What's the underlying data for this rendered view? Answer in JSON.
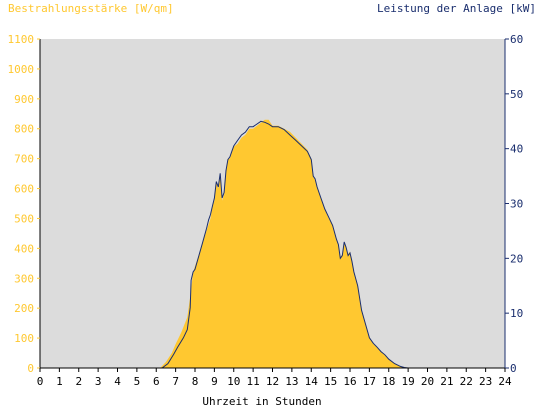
{
  "chart_data": {
    "type": "area",
    "left_axis_title": "Bestrahlungsstärke [W/qm]",
    "right_axis_title": "Leistung der Anlage [kW]",
    "xlabel": "Uhrzeit in Stunden",
    "xlim": [
      0,
      24
    ],
    "x_ticks": [
      "0",
      "1",
      "2",
      "3",
      "4",
      "5",
      "6",
      "7",
      "8",
      "9",
      "10",
      "11",
      "12",
      "13",
      "14",
      "15",
      "16",
      "17",
      "18",
      "19",
      "20",
      "21",
      "22",
      "23",
      "24"
    ],
    "ylim_left": [
      0,
      1100
    ],
    "y_ticks_left": [
      "0",
      "100",
      "200",
      "300",
      "400",
      "500",
      "600",
      "700",
      "800",
      "900",
      "1000",
      "1100"
    ],
    "ylim_right": [
      0,
      60
    ],
    "y_ticks_right": [
      "0",
      "10",
      "20",
      "30",
      "40",
      "50",
      "60"
    ],
    "grid": false,
    "colors": {
      "plot_background": "#dcdcdc",
      "irradiance_fill": "#ffc830",
      "power_line": "#1a2e6e",
      "left_axis_text": "#ffc830",
      "right_axis_text": "#1a2e6e"
    },
    "series": [
      {
        "axis": "left",
        "style": "area",
        "x": [
          0,
          6.2,
          6.5,
          6.8,
          7.0,
          7.3,
          7.6,
          7.8,
          7.9,
          8.0,
          8.2,
          8.5,
          8.7,
          8.8,
          8.9,
          9.0,
          9.1,
          9.2,
          9.3,
          9.4,
          9.5,
          9.6,
          9.7,
          9.8,
          9.9,
          10.0,
          10.2,
          10.4,
          10.6,
          10.8,
          11.0,
          11.2,
          11.4,
          11.6,
          11.8,
          12.0,
          12.3,
          12.6,
          12.9,
          13.2,
          13.5,
          13.8,
          14.0,
          14.1,
          14.2,
          14.3,
          14.5,
          14.7,
          14.9,
          15.1,
          15.3,
          15.4,
          15.5,
          15.6,
          15.7,
          15.8,
          15.9,
          16.0,
          16.1,
          16.2,
          16.4,
          16.6,
          16.8,
          17.0,
          17.2,
          17.4,
          17.6,
          17.8,
          18.0,
          18.3,
          18.6,
          18.8,
          19.0,
          24
        ],
        "y": [
          0,
          0,
          20,
          50,
          80,
          120,
          170,
          260,
          320,
          340,
          380,
          440,
          480,
          500,
          540,
          560,
          620,
          600,
          640,
          560,
          580,
          650,
          700,
          700,
          720,
          740,
          750,
          770,
          780,
          800,
          800,
          810,
          820,
          830,
          830,
          810,
          810,
          800,
          790,
          770,
          750,
          730,
          700,
          640,
          630,
          600,
          570,
          530,
          500,
          480,
          430,
          410,
          370,
          380,
          420,
          400,
          380,
          390,
          360,
          320,
          280,
          190,
          150,
          100,
          80,
          70,
          55,
          45,
          30,
          15,
          5,
          2,
          0,
          0
        ]
      },
      {
        "axis": "right",
        "style": "line",
        "x": [
          0,
          6.3,
          6.6,
          6.9,
          7.1,
          7.4,
          7.6,
          7.75,
          7.8,
          7.9,
          8.0,
          8.2,
          8.4,
          8.6,
          8.7,
          8.8,
          8.9,
          9.0,
          9.1,
          9.2,
          9.3,
          9.4,
          9.5,
          9.6,
          9.7,
          9.8,
          9.9,
          10.0,
          10.2,
          10.4,
          10.6,
          10.8,
          11.0,
          11.2,
          11.4,
          11.6,
          11.8,
          12.0,
          12.3,
          12.6,
          12.9,
          13.2,
          13.5,
          13.8,
          14.0,
          14.1,
          14.2,
          14.3,
          14.5,
          14.7,
          14.9,
          15.1,
          15.3,
          15.4,
          15.5,
          15.6,
          15.7,
          15.8,
          15.9,
          16.0,
          16.1,
          16.2,
          16.4,
          16.6,
          16.8,
          17.0,
          17.2,
          17.4,
          17.6,
          17.8,
          18.0,
          18.3,
          18.6,
          18.8,
          19.0,
          24
        ],
        "y": [
          0,
          0,
          0.8,
          2.5,
          3.8,
          5.5,
          7.0,
          11.0,
          16.0,
          17.5,
          18.0,
          20.5,
          23.0,
          25.5,
          27.0,
          28.0,
          29.5,
          31.0,
          34.0,
          33.0,
          35.5,
          31.0,
          32.0,
          36.0,
          38.0,
          38.5,
          39.5,
          40.5,
          41.5,
          42.5,
          43.0,
          44.0,
          44.0,
          44.5,
          45.0,
          44.8,
          44.5,
          44.0,
          44.0,
          43.5,
          42.5,
          41.5,
          40.5,
          39.5,
          38.0,
          35.0,
          34.5,
          33.0,
          31.0,
          29.0,
          27.5,
          26.0,
          23.5,
          22.5,
          20.0,
          20.5,
          23.0,
          22.0,
          20.5,
          21.0,
          19.5,
          17.5,
          15.0,
          10.5,
          8.0,
          5.5,
          4.5,
          3.8,
          3.0,
          2.4,
          1.6,
          0.8,
          0.3,
          0.1,
          0,
          0
        ]
      }
    ]
  }
}
